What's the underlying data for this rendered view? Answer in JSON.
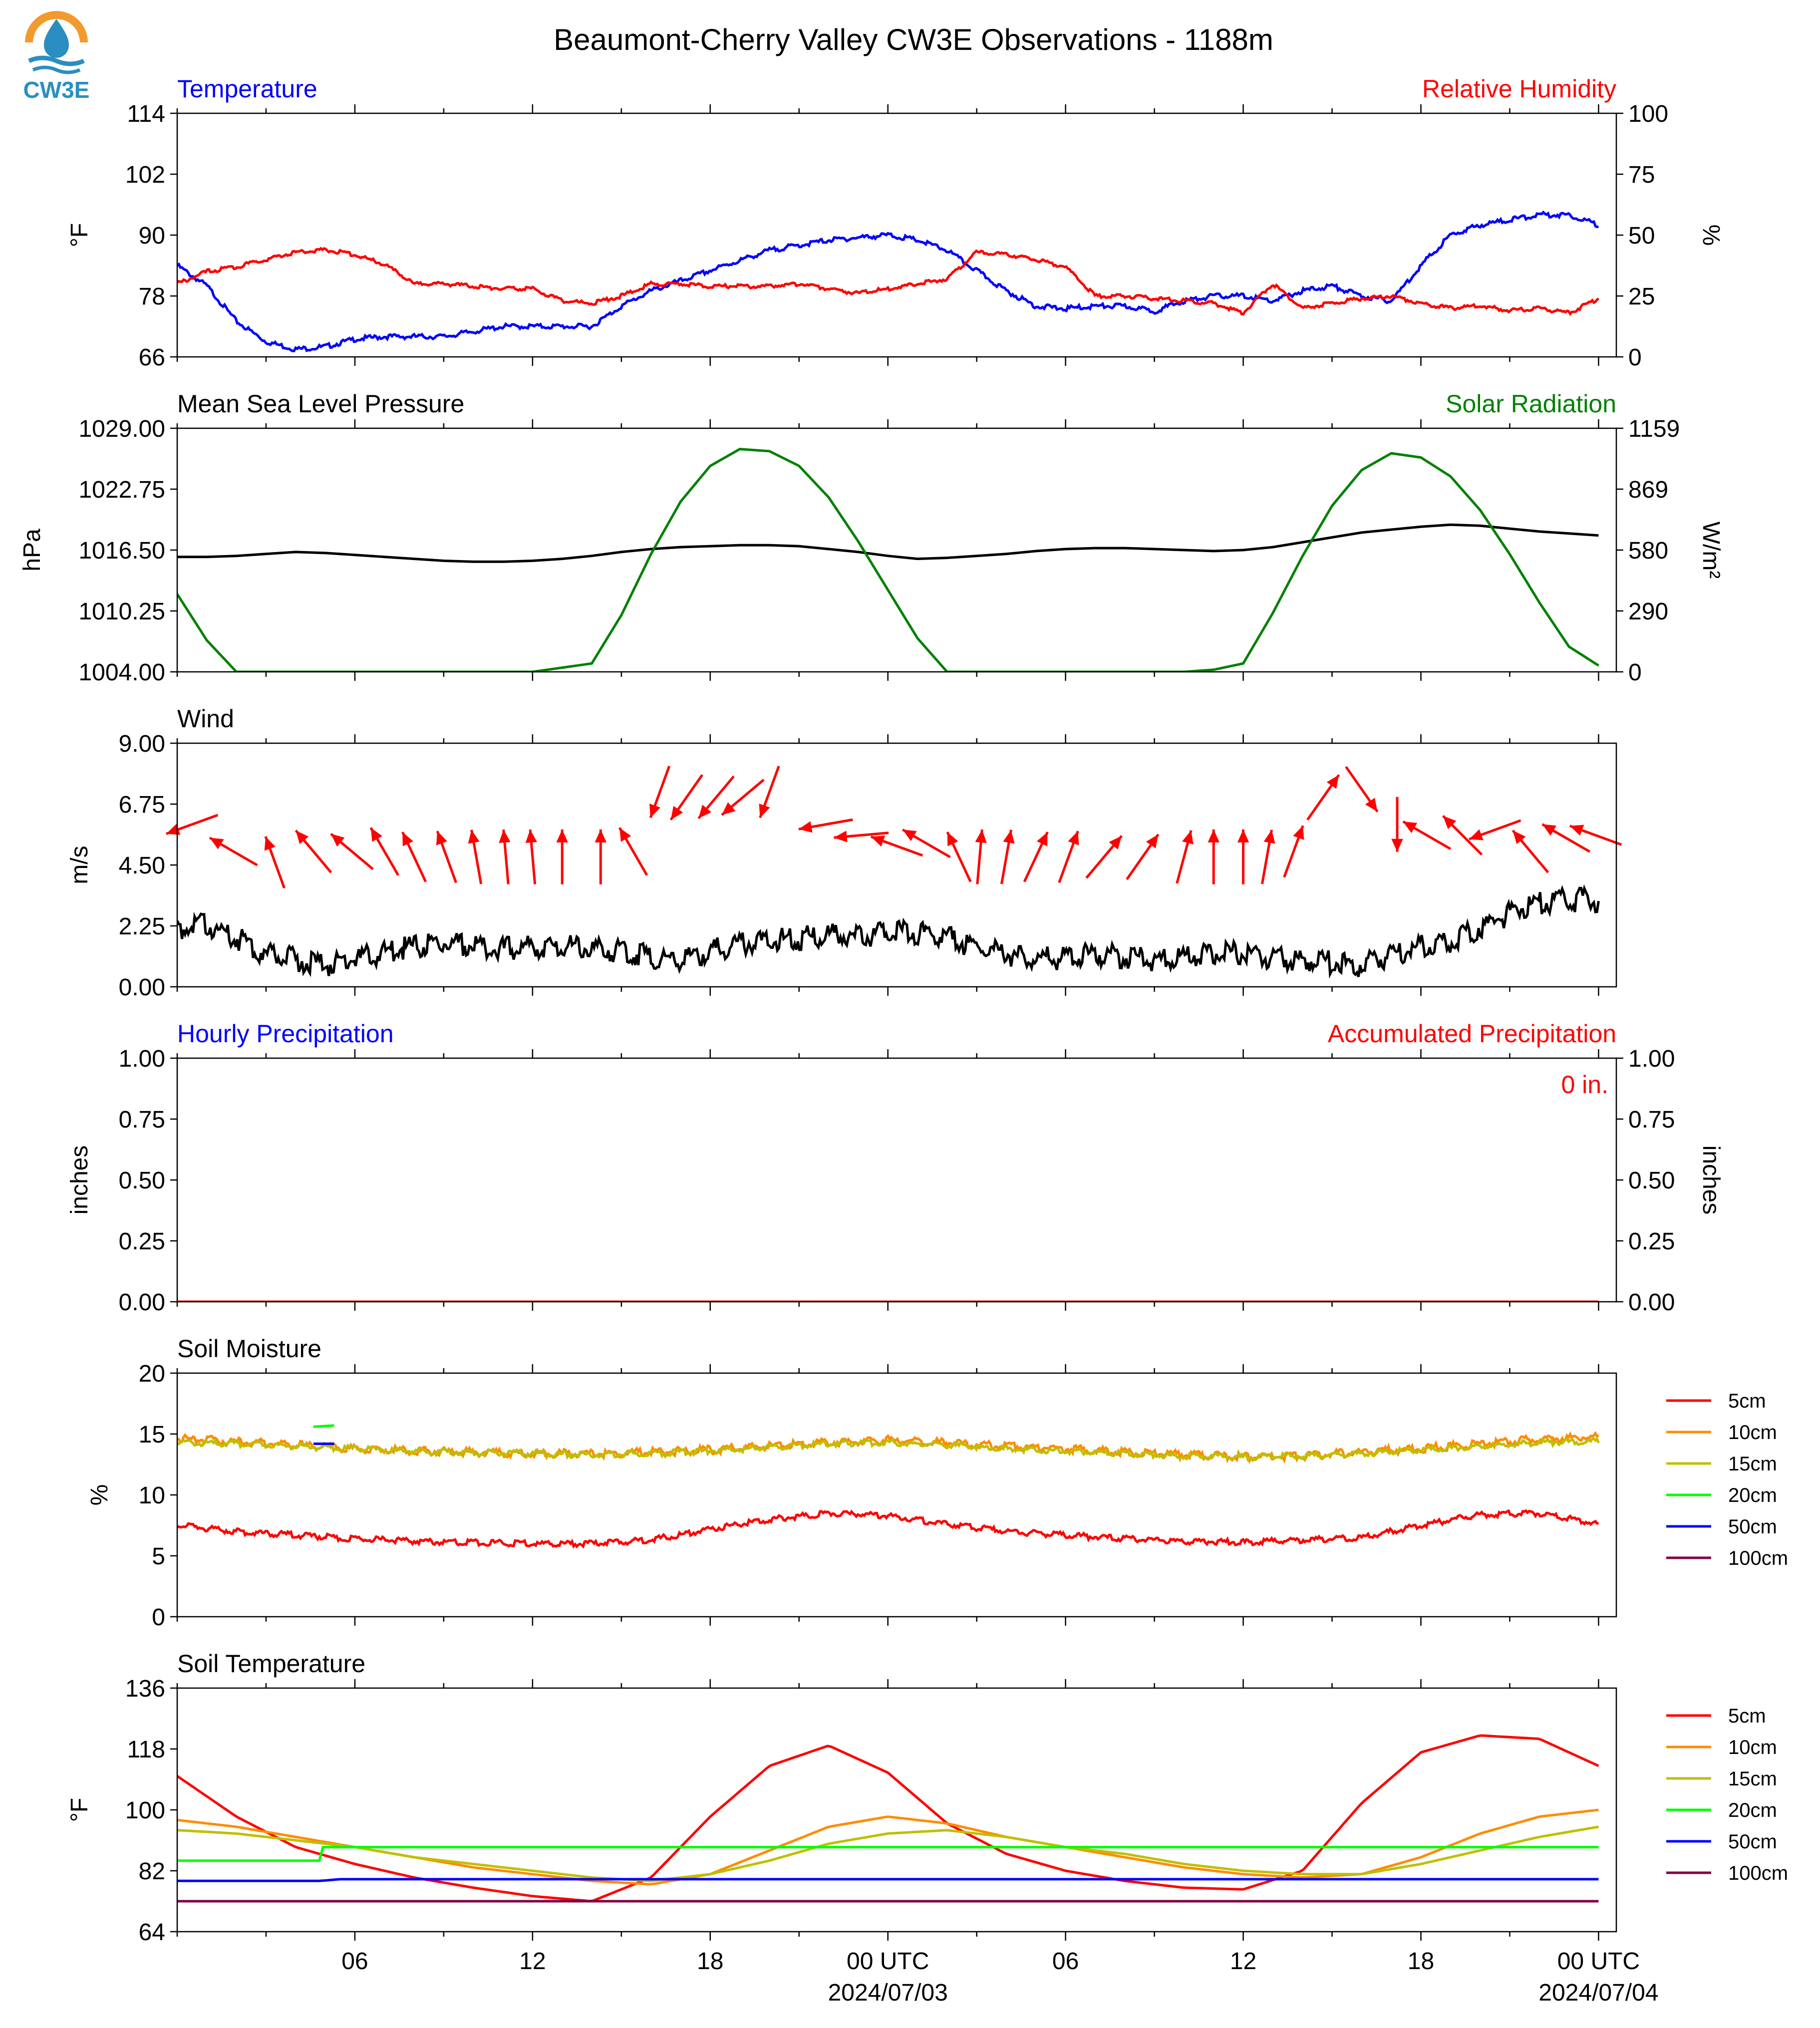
{
  "title": "Beaumont-Cherry Valley CW3E Observations - 1188m",
  "logo": {
    "text": "CW3E",
    "icon": "water-drop-sun-logo",
    "colors": {
      "sun": "#f29a2e",
      "water": "#2a8fc0",
      "text": "#2a8fc0"
    }
  },
  "colors": {
    "blue": "#0000ff",
    "red": "#ff0000",
    "green": "#008000",
    "black": "#000000"
  },
  "time_axis": {
    "ticks": [
      "06",
      "12",
      "18",
      "00 UTC",
      "06",
      "12",
      "18",
      "00 UTC"
    ],
    "dates": [
      "2024/07/03",
      "2024/07/04"
    ]
  },
  "chart_data": [
    {
      "id": "temp-rh",
      "type": "line",
      "left_title": "Temperature",
      "right_title": "Relative Humidity",
      "ylabel": "°F",
      "ylabel2": "%",
      "ylim": [
        66,
        114
      ],
      "yticks": [
        "66",
        "78",
        "90",
        "102",
        "114"
      ],
      "ylim2": [
        0,
        100
      ],
      "yticks2": [
        "0",
        "25",
        "50",
        "75",
        "100"
      ],
      "x_hours": [
        0,
        1,
        2,
        3,
        4,
        5,
        6,
        7,
        8,
        9,
        10,
        11,
        12,
        13,
        14,
        15,
        16,
        17,
        18,
        19,
        20,
        21,
        22,
        23,
        24,
        25,
        26,
        27,
        28,
        29,
        30,
        31,
        32,
        33,
        34,
        35,
        36,
        37,
        38,
        39,
        40,
        41,
        42,
        43,
        44,
        45,
        46,
        47,
        48
      ],
      "series": [
        {
          "axis": "left",
          "color": "#0000ff",
          "values": [
            84,
            80,
            73,
            69,
            67.5,
            68,
            69.5,
            70,
            70,
            70,
            71,
            72,
            72,
            72,
            72,
            76,
            79,
            81,
            83,
            85,
            87,
            88,
            89,
            89.5,
            90,
            89,
            87,
            83,
            79,
            76,
            75.5,
            76,
            76,
            75,
            77,
            78,
            78,
            77,
            79,
            80,
            78,
            77,
            84,
            90,
            92,
            93,
            94,
            94,
            92
          ]
        },
        {
          "axis": "right",
          "color": "#ff0000",
          "values": [
            30,
            35,
            37,
            40,
            43,
            44,
            42,
            38,
            30,
            30,
            29,
            28,
            28,
            23,
            22,
            25,
            30,
            30,
            29,
            29,
            29,
            30,
            28,
            26,
            28,
            30,
            32,
            43,
            42,
            40,
            37,
            25,
            25,
            24,
            23,
            22,
            18,
            30,
            20,
            22,
            24,
            25,
            22,
            20,
            21,
            19,
            20,
            18,
            24
          ]
        }
      ]
    },
    {
      "id": "pressure-solar",
      "type": "line",
      "left_title": "Mean Sea Level Pressure",
      "right_title": "Solar Radiation",
      "ylabel": "hPa",
      "ylabel2": "W/m²",
      "ylim": [
        1004,
        1029
      ],
      "yticks": [
        "1004.00",
        "1010.25",
        "1016.50",
        "1022.75",
        "1029.00"
      ],
      "ylim2": [
        0,
        1159
      ],
      "yticks2": [
        "0",
        "290",
        "580",
        "869",
        "1159"
      ],
      "x_hours": [
        0,
        1,
        2,
        3,
        4,
        5,
        6,
        7,
        8,
        9,
        10,
        11,
        12,
        13,
        14,
        15,
        16,
        17,
        18,
        19,
        20,
        21,
        22,
        23,
        24,
        25,
        26,
        27,
        28,
        29,
        30,
        31,
        32,
        33,
        34,
        35,
        36,
        37,
        38,
        39,
        40,
        41,
        42,
        43,
        44,
        45,
        46,
        47,
        48
      ],
      "series": [
        {
          "axis": "left",
          "color": "#000000",
          "values": [
            1015.8,
            1015.8,
            1015.9,
            1016.1,
            1016.3,
            1016.2,
            1016.0,
            1015.8,
            1015.6,
            1015.4,
            1015.3,
            1015.3,
            1015.4,
            1015.6,
            1015.9,
            1016.3,
            1016.6,
            1016.8,
            1016.9,
            1017.0,
            1017.0,
            1016.9,
            1016.6,
            1016.3,
            1015.9,
            1015.6,
            1015.7,
            1015.9,
            1016.1,
            1016.4,
            1016.6,
            1016.7,
            1016.7,
            1016.6,
            1016.5,
            1016.4,
            1016.5,
            1016.8,
            1017.3,
            1017.8,
            1018.3,
            1018.6,
            1018.9,
            1019.1,
            1019.0,
            1018.7,
            1018.4,
            1018.2,
            1018.0
          ]
        },
        {
          "axis": "right",
          "color": "#008000",
          "values": [
            370,
            150,
            0,
            0,
            0,
            0,
            0,
            0,
            0,
            0,
            0,
            0,
            0,
            20,
            40,
            270,
            560,
            810,
            980,
            1060,
            1050,
            980,
            830,
            620,
            390,
            160,
            0,
            0,
            0,
            0,
            0,
            0,
            0,
            0,
            0,
            10,
            40,
            280,
            550,
            790,
            960,
            1040,
            1020,
            930,
            770,
            560,
            330,
            120,
            30
          ]
        }
      ]
    },
    {
      "id": "wind",
      "type": "line",
      "left_title": "Wind",
      "ylabel": "m/s",
      "ylim": [
        0,
        9
      ],
      "yticks": [
        "0.00",
        "2.25",
        "4.50",
        "6.75",
        "9.00"
      ],
      "x_hours": [
        0,
        1,
        2,
        3,
        4,
        5,
        6,
        7,
        8,
        9,
        10,
        11,
        12,
        13,
        14,
        15,
        16,
        17,
        18,
        19,
        20,
        21,
        22,
        23,
        24,
        25,
        26,
        27,
        28,
        29,
        30,
        31,
        32,
        33,
        34,
        35,
        36,
        37,
        38,
        39,
        40,
        41,
        42,
        43,
        44,
        45,
        46,
        47,
        48
      ],
      "series": [
        {
          "axis": "left",
          "color": "#000000",
          "values": [
            2.2,
            2.3,
            1.8,
            1.2,
            1.0,
            0.8,
            1.0,
            1.3,
            1.5,
            1.6,
            1.5,
            1.4,
            1.5,
            1.5,
            1.4,
            1.3,
            1.1,
            1.0,
            1.3,
            1.6,
            1.7,
            1.8,
            1.9,
            1.8,
            2.1,
            2.0,
            1.8,
            1.5,
            1.2,
            1.0,
            1.1,
            1.2,
            1.1,
            1.0,
            1.1,
            1.3,
            1.2,
            1.1,
            1.0,
            0.9,
            0.8,
            1.2,
            1.5,
            1.7,
            2.2,
            2.7,
            3.1,
            3.2,
            3.2
          ]
        }
      ],
      "arrows": {
        "color": "#ff0000",
        "x_hours": [
          0.5,
          1.9,
          3.3,
          4.6,
          5.9,
          7.0,
          8.0,
          9.1,
          10.1,
          11.1,
          12.0,
          13.0,
          14.3,
          15.4,
          16.3,
          17.2,
          18.2,
          19.1,
          20.0,
          21.9,
          23.1,
          24.3,
          25.3,
          26.4,
          27.1,
          28.0,
          29.0,
          30.1,
          31.3,
          32.6,
          34.0,
          35.0,
          36.0,
          36.8,
          37.7,
          38.7,
          40.0,
          41.2,
          42.2,
          43.4,
          44.5,
          45.7,
          46.9,
          47.9
        ],
        "directions_deg": [
          250,
          300,
          340,
          320,
          310,
          330,
          335,
          340,
          350,
          355,
          355,
          0,
          0,
          330,
          200,
          215,
          220,
          230,
          200,
          260,
          265,
          290,
          300,
          335,
          5,
          10,
          25,
          20,
          40,
          35,
          15,
          0,
          0,
          10,
          20,
          35,
          145,
          180,
          300,
          315,
          250,
          320,
          300,
          290
        ],
        "y_values": [
          6.0,
          5.0,
          4.6,
          5.0,
          5.0,
          5.0,
          4.8,
          4.8,
          4.8,
          4.8,
          4.8,
          4.8,
          4.8,
          5.0,
          7.2,
          7.0,
          7.0,
          7.0,
          7.2,
          6.0,
          5.6,
          5.2,
          5.3,
          4.8,
          4.8,
          4.8,
          4.8,
          4.8,
          4.8,
          4.8,
          4.8,
          4.8,
          4.8,
          4.8,
          5.0,
          7.0,
          7.3,
          6.0,
          5.6,
          5.6,
          5.8,
          5.0,
          5.5,
          5.6
        ]
      }
    },
    {
      "id": "precip",
      "type": "line",
      "left_title": "Hourly Precipitation",
      "right_title": "Accumulated Precipitation",
      "annotation": "0 in.",
      "ylabel": "inches",
      "ylabel2": "inches",
      "ylim": [
        0,
        1
      ],
      "yticks": [
        "0.00",
        "0.25",
        "0.50",
        "0.75",
        "1.00"
      ],
      "ylim2": [
        0,
        1
      ],
      "yticks2": [
        "0.00",
        "0.25",
        "0.50",
        "0.75",
        "1.00"
      ],
      "x_hours": [
        0,
        48
      ],
      "series": [
        {
          "axis": "left",
          "color": "#0000ff",
          "values": [
            0,
            0
          ]
        },
        {
          "axis": "right",
          "color": "#ff0000",
          "values": [
            0,
            0
          ]
        }
      ]
    },
    {
      "id": "soil-moisture",
      "type": "line",
      "left_title": "Soil Moisture",
      "ylabel": "%",
      "ylim": [
        0,
        20
      ],
      "yticks": [
        "0",
        "5",
        "10",
        "15",
        "20"
      ],
      "legend": [
        "5cm",
        "10cm",
        "15cm",
        "20cm",
        "50cm",
        "100cm"
      ],
      "x_hours": [
        0,
        2,
        4,
        6,
        8,
        10,
        12,
        14,
        16,
        18,
        20,
        22,
        24,
        26,
        28,
        30,
        32,
        34,
        36,
        38,
        40,
        42,
        44,
        46,
        48
      ],
      "series": [
        {
          "name": "5cm",
          "color": "#ff0000",
          "values": [
            7.5,
            7.0,
            6.7,
            6.4,
            6.2,
            6.1,
            6.0,
            6.0,
            6.3,
            7.2,
            8.0,
            8.5,
            8.3,
            7.6,
            7.0,
            6.7,
            6.4,
            6.2,
            6.1,
            6.3,
            6.5,
            7.5,
            8.4,
            8.5,
            7.6
          ]
        },
        {
          "name": "10cm",
          "color": "#ff8c00",
          "values": [
            14.6,
            14.4,
            14.1,
            13.8,
            13.6,
            13.5,
            13.4,
            13.4,
            13.5,
            13.7,
            14.0,
            14.3,
            14.5,
            14.3,
            14.0,
            13.8,
            13.5,
            13.3,
            13.1,
            13.2,
            13.5,
            13.8,
            14.2,
            14.6,
            14.8
          ]
        },
        {
          "name": "15cm",
          "color": "#bfbf00",
          "values": [
            14.3,
            14.2,
            14.0,
            13.8,
            13.6,
            13.5,
            13.4,
            13.3,
            13.4,
            13.6,
            13.9,
            14.2,
            14.3,
            14.1,
            13.8,
            13.6,
            13.4,
            13.2,
            13.1,
            13.2,
            13.4,
            13.7,
            14.0,
            14.3,
            14.4
          ]
        },
        {
          "name": "20cm",
          "color": "#00ff00",
          "x_hours": [
            4.6,
            5.3
          ],
          "values": [
            15.6,
            15.7
          ]
        },
        {
          "name": "50cm",
          "color": "#0000ff",
          "x_hours": [
            4.6,
            5.3
          ],
          "values": [
            14.2,
            14.2
          ]
        },
        {
          "name": "100cm",
          "color": "#800040",
          "x_hours": [],
          "values": []
        }
      ]
    },
    {
      "id": "soil-temperature",
      "type": "line",
      "left_title": "Soil Temperature",
      "ylabel": "°F",
      "ylim": [
        64,
        136
      ],
      "yticks": [
        "64",
        "82",
        "100",
        "118",
        "136"
      ],
      "legend": [
        "5cm",
        "10cm",
        "15cm",
        "20cm",
        "50cm",
        "100cm"
      ],
      "x_hours": [
        0,
        2,
        4,
        6,
        8,
        10,
        12,
        14,
        16,
        18,
        20,
        22,
        24,
        26,
        28,
        30,
        32,
        34,
        36,
        38,
        40,
        42,
        44,
        46,
        48
      ],
      "series": [
        {
          "name": "5cm",
          "color": "#ff0000",
          "values": [
            110,
            98,
            89,
            84,
            80,
            77,
            74.5,
            73,
            80,
            98,
            113,
            119,
            111,
            96,
            87,
            82,
            79,
            77,
            76.5,
            82,
            102,
            117,
            122,
            121,
            113
          ]
        },
        {
          "name": "10cm",
          "color": "#ff8c00",
          "values": [
            97,
            95,
            92,
            89,
            86,
            83,
            81,
            79,
            78,
            81,
            88,
            95,
            98,
            96,
            92,
            89,
            86,
            83,
            81,
            80,
            81,
            86,
            93,
            98,
            100
          ]
        },
        {
          "name": "15cm",
          "color": "#bfbf00",
          "values": [
            94,
            93,
            91,
            89,
            86,
            84,
            82,
            80,
            79,
            81,
            85,
            90,
            93,
            94,
            92,
            89,
            87,
            84,
            82,
            81,
            81,
            84,
            88,
            92,
            95
          ]
        },
        {
          "name": "20cm",
          "color": "#00ff00",
          "x_hours": [
            0,
            4.8,
            4.8,
            48
          ],
          "values": [
            85,
            85,
            89,
            89
          ]
        },
        {
          "name": "50cm",
          "color": "#0000ff",
          "x_hours": [
            0,
            4.8,
            5.5,
            48
          ],
          "values": [
            79,
            79,
            79.5,
            79.5
          ]
        },
        {
          "name": "100cm",
          "color": "#800040",
          "x_hours": [
            0,
            48
          ],
          "values": [
            73,
            73
          ]
        }
      ]
    }
  ]
}
